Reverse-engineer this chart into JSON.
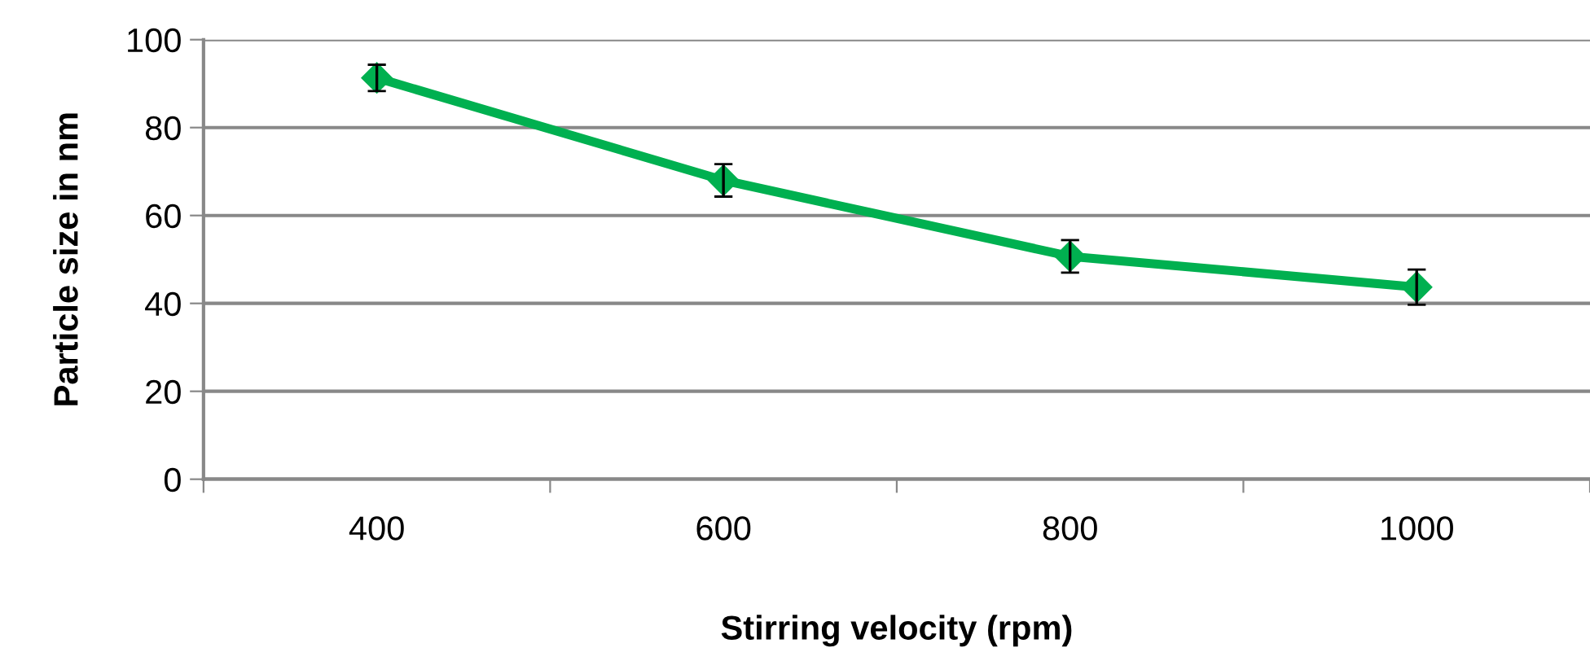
{
  "chart_data": {
    "type": "line",
    "xlabel": "Stirring velocity (rpm)",
    "ylabel": "Particle size in nm",
    "categories": [
      "400",
      "600",
      "800",
      "1000"
    ],
    "series": [
      {
        "color": "#00b050",
        "values": [
          91.3,
          68,
          50.7,
          43.7
        ],
        "errors": [
          3,
          3.7,
          3.7,
          4
        ]
      }
    ],
    "ylim": [
      0,
      100
    ],
    "yticks": [
      0,
      20,
      40,
      60,
      80,
      100
    ],
    "grid": "y",
    "marker": "diamond",
    "line_style": "solid"
  }
}
